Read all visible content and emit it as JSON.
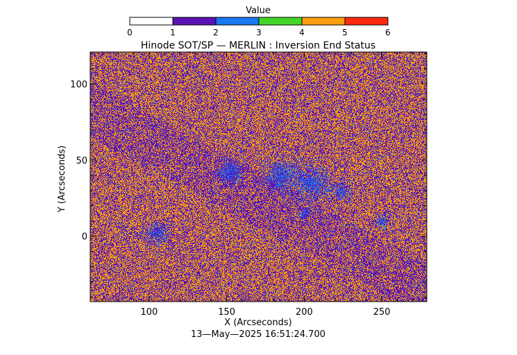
{
  "chart_data": {
    "type": "heatmap",
    "title": "Hinode SOT/SP — MERLIN : Inversion End Status",
    "xlabel": "X (Arcseconds)",
    "ylabel": "Y (Arcseconds)",
    "timestamp": "13—May—2025 16:51:24.700",
    "xlim": [
      62,
      279
    ],
    "ylim": [
      -43,
      121
    ],
    "x_ticks": [
      100,
      150,
      200,
      250
    ],
    "y_ticks": [
      0,
      50,
      100
    ],
    "colorbar": {
      "label": "Value",
      "range": [
        0,
        6
      ],
      "ticks": [
        0,
        1,
        2,
        3,
        4,
        5,
        6
      ],
      "bins": [
        {
          "min": 0,
          "max": 1,
          "color": "#ffffff"
        },
        {
          "min": 1,
          "max": 2,
          "color": "#5b12b4"
        },
        {
          "min": 2,
          "max": 3,
          "color": "#1a78f0"
        },
        {
          "min": 3,
          "max": 4,
          "color": "#44d62a"
        },
        {
          "min": 4,
          "max": 5,
          "color": "#ff9d0f"
        },
        {
          "min": 5,
          "max": 6,
          "color": "#ff2a10"
        }
      ]
    },
    "value_fractions": {
      "1": 0.46,
      "2": 0.05,
      "4": 0.49
    },
    "grid": false
  }
}
